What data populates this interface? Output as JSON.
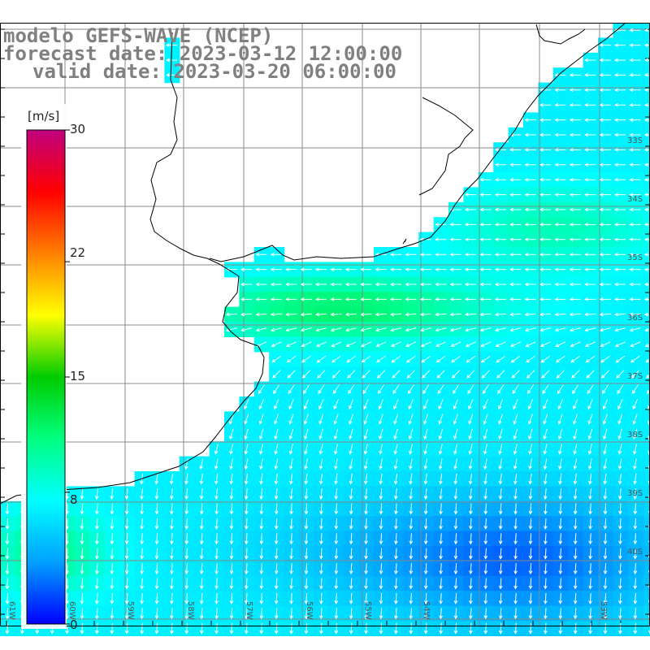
{
  "title": {
    "line1": "modelo GEFS-WAVE (NCEP)",
    "line2": "forecast date: 2023-03-12 12:00:00",
    "line3": "valid date: 2023-03-20 06:00:00"
  },
  "colorbar": {
    "unit": "[m/s]",
    "ticks": [
      "30",
      "22",
      "15",
      "8",
      "0"
    ],
    "tick_values": [
      30,
      22,
      15,
      8,
      0
    ],
    "colors": [
      "#0000ff",
      "#00a0ff",
      "#00ffff",
      "#00ff80",
      "#00cc00",
      "#ffff00",
      "#ff8000",
      "#ff0000",
      "#c00080"
    ]
  },
  "lat_labels": [
    "33S",
    "34S",
    "35S",
    "36S",
    "37S",
    "38S",
    "39S",
    "40S"
  ],
  "lon_labels": [
    "61W",
    "60W",
    "59W",
    "58W",
    "57W",
    "56W",
    "55W",
    "54W",
    "53W"
  ],
  "chart_data": {
    "type": "heatmap",
    "title": "modelo GEFS-WAVE (NCEP)",
    "subtitle": "forecast date: 2023-03-12 12:00:00 / valid date: 2023-03-20 06:00:00",
    "units": "m/s",
    "range": [
      0,
      30
    ],
    "legend_placement": "left",
    "grid": true,
    "lat_range_deg_south": [
      32.5,
      41.5
    ],
    "lon_range_deg_west": [
      52.5,
      63
    ],
    "field_notes": "Wind vectors over ocean; strongest values ~12 m/s near 35-36S, weaker ~5 m/s in south-east"
  }
}
